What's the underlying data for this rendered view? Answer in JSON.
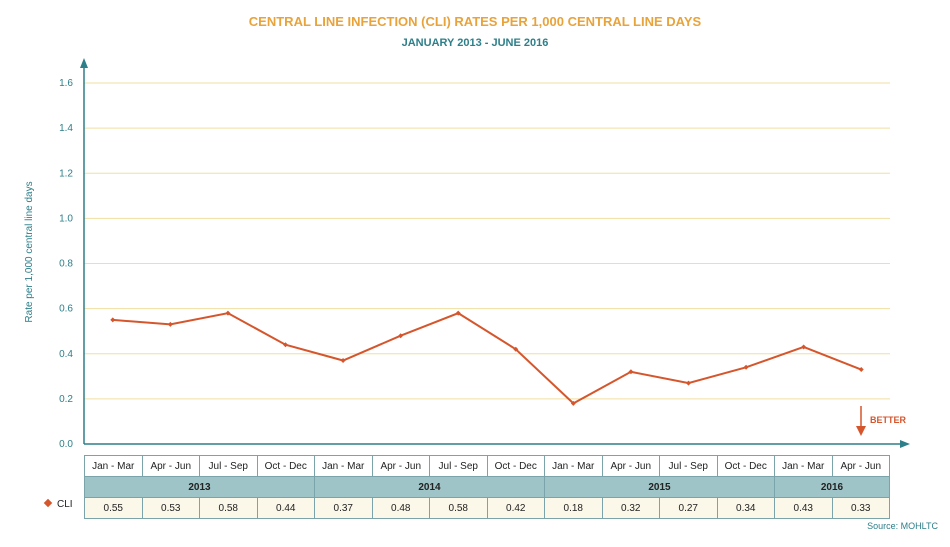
{
  "chart_data": {
    "type": "line",
    "title": "CENTRAL LINE INFECTION (CLI) RATES PER 1,000 CENTRAL LINE DAYS",
    "subtitle": "JANUARY 2013 - JUNE 2016",
    "ylabel": "Rate per 1,000 central line days",
    "ylim": [
      0,
      1.6
    ],
    "yticks": [
      "0.0",
      "0.2",
      "0.4",
      "0.6",
      "0.8",
      "1.0",
      "1.2",
      "1.4",
      "1.6"
    ],
    "grid": true,
    "categories": [
      "Jan - Mar",
      "Apr - Jun",
      "Jul - Sep",
      "Oct - Dec",
      "Jan - Mar",
      "Apr - Jun",
      "Jul - Sep",
      "Oct - Dec",
      "Jan - Mar",
      "Apr - Jun",
      "Jul - Sep",
      "Oct - Dec",
      "Jan - Mar",
      "Apr - Jun"
    ],
    "years": [
      {
        "label": "2013",
        "span": 4
      },
      {
        "label": "2014",
        "span": 4
      },
      {
        "label": "2015",
        "span": 4
      },
      {
        "label": "2016",
        "span": 2
      }
    ],
    "series": [
      {
        "name": "CLI",
        "values": [
          0.55,
          0.53,
          0.58,
          0.44,
          0.37,
          0.48,
          0.58,
          0.42,
          0.18,
          0.32,
          0.27,
          0.34,
          0.43,
          0.33
        ],
        "value_labels": [
          "0.55",
          "0.53",
          "0.58",
          "0.44",
          "0.37",
          "0.48",
          "0.58",
          "0.42",
          "0.18",
          "0.32",
          "0.27",
          "0.34",
          "0.43",
          "0.33"
        ]
      }
    ],
    "annotation": "BETTER",
    "source": "Source: MOHLTC",
    "colors": {
      "line": "#d5562c",
      "grid": "#f0dfa0",
      "axis": "#2d7f8a",
      "title": "#e8a33a"
    }
  }
}
